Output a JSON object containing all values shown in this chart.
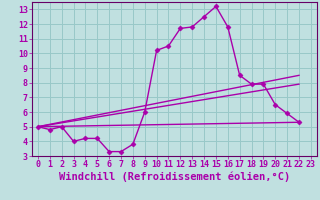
{
  "xlabel": "Windchill (Refroidissement éolien,°C)",
  "background_color": "#c0e0e0",
  "grid_color": "#98c8c8",
  "line_color": "#aa00aa",
  "spine_color": "#660066",
  "xlim": [
    -0.5,
    23.5
  ],
  "ylim": [
    3,
    13.5
  ],
  "xticks": [
    0,
    1,
    2,
    3,
    4,
    5,
    6,
    7,
    8,
    9,
    10,
    11,
    12,
    13,
    14,
    15,
    16,
    17,
    18,
    19,
    20,
    21,
    22,
    23
  ],
  "yticks": [
    3,
    4,
    5,
    6,
    7,
    8,
    9,
    10,
    11,
    12,
    13
  ],
  "curve_x": [
    0,
    1,
    2,
    3,
    4,
    5,
    6,
    7,
    8,
    9,
    10,
    11,
    12,
    13,
    14,
    15,
    16,
    17,
    18,
    19,
    20,
    21,
    22
  ],
  "curve_y": [
    5.0,
    4.8,
    5.0,
    4.0,
    4.2,
    4.2,
    3.3,
    3.3,
    3.8,
    6.0,
    10.2,
    10.5,
    11.7,
    11.8,
    12.5,
    13.2,
    11.8,
    8.5,
    7.9,
    7.9,
    6.5,
    5.9,
    5.3
  ],
  "straight_lines": [
    {
      "x": [
        0,
        22
      ],
      "y": [
        5.0,
        5.3
      ]
    },
    {
      "x": [
        0,
        22
      ],
      "y": [
        5.0,
        7.9
      ]
    },
    {
      "x": [
        0,
        22
      ],
      "y": [
        5.0,
        8.5
      ]
    }
  ],
  "tick_fontsize": 6,
  "label_fontsize": 7.5
}
